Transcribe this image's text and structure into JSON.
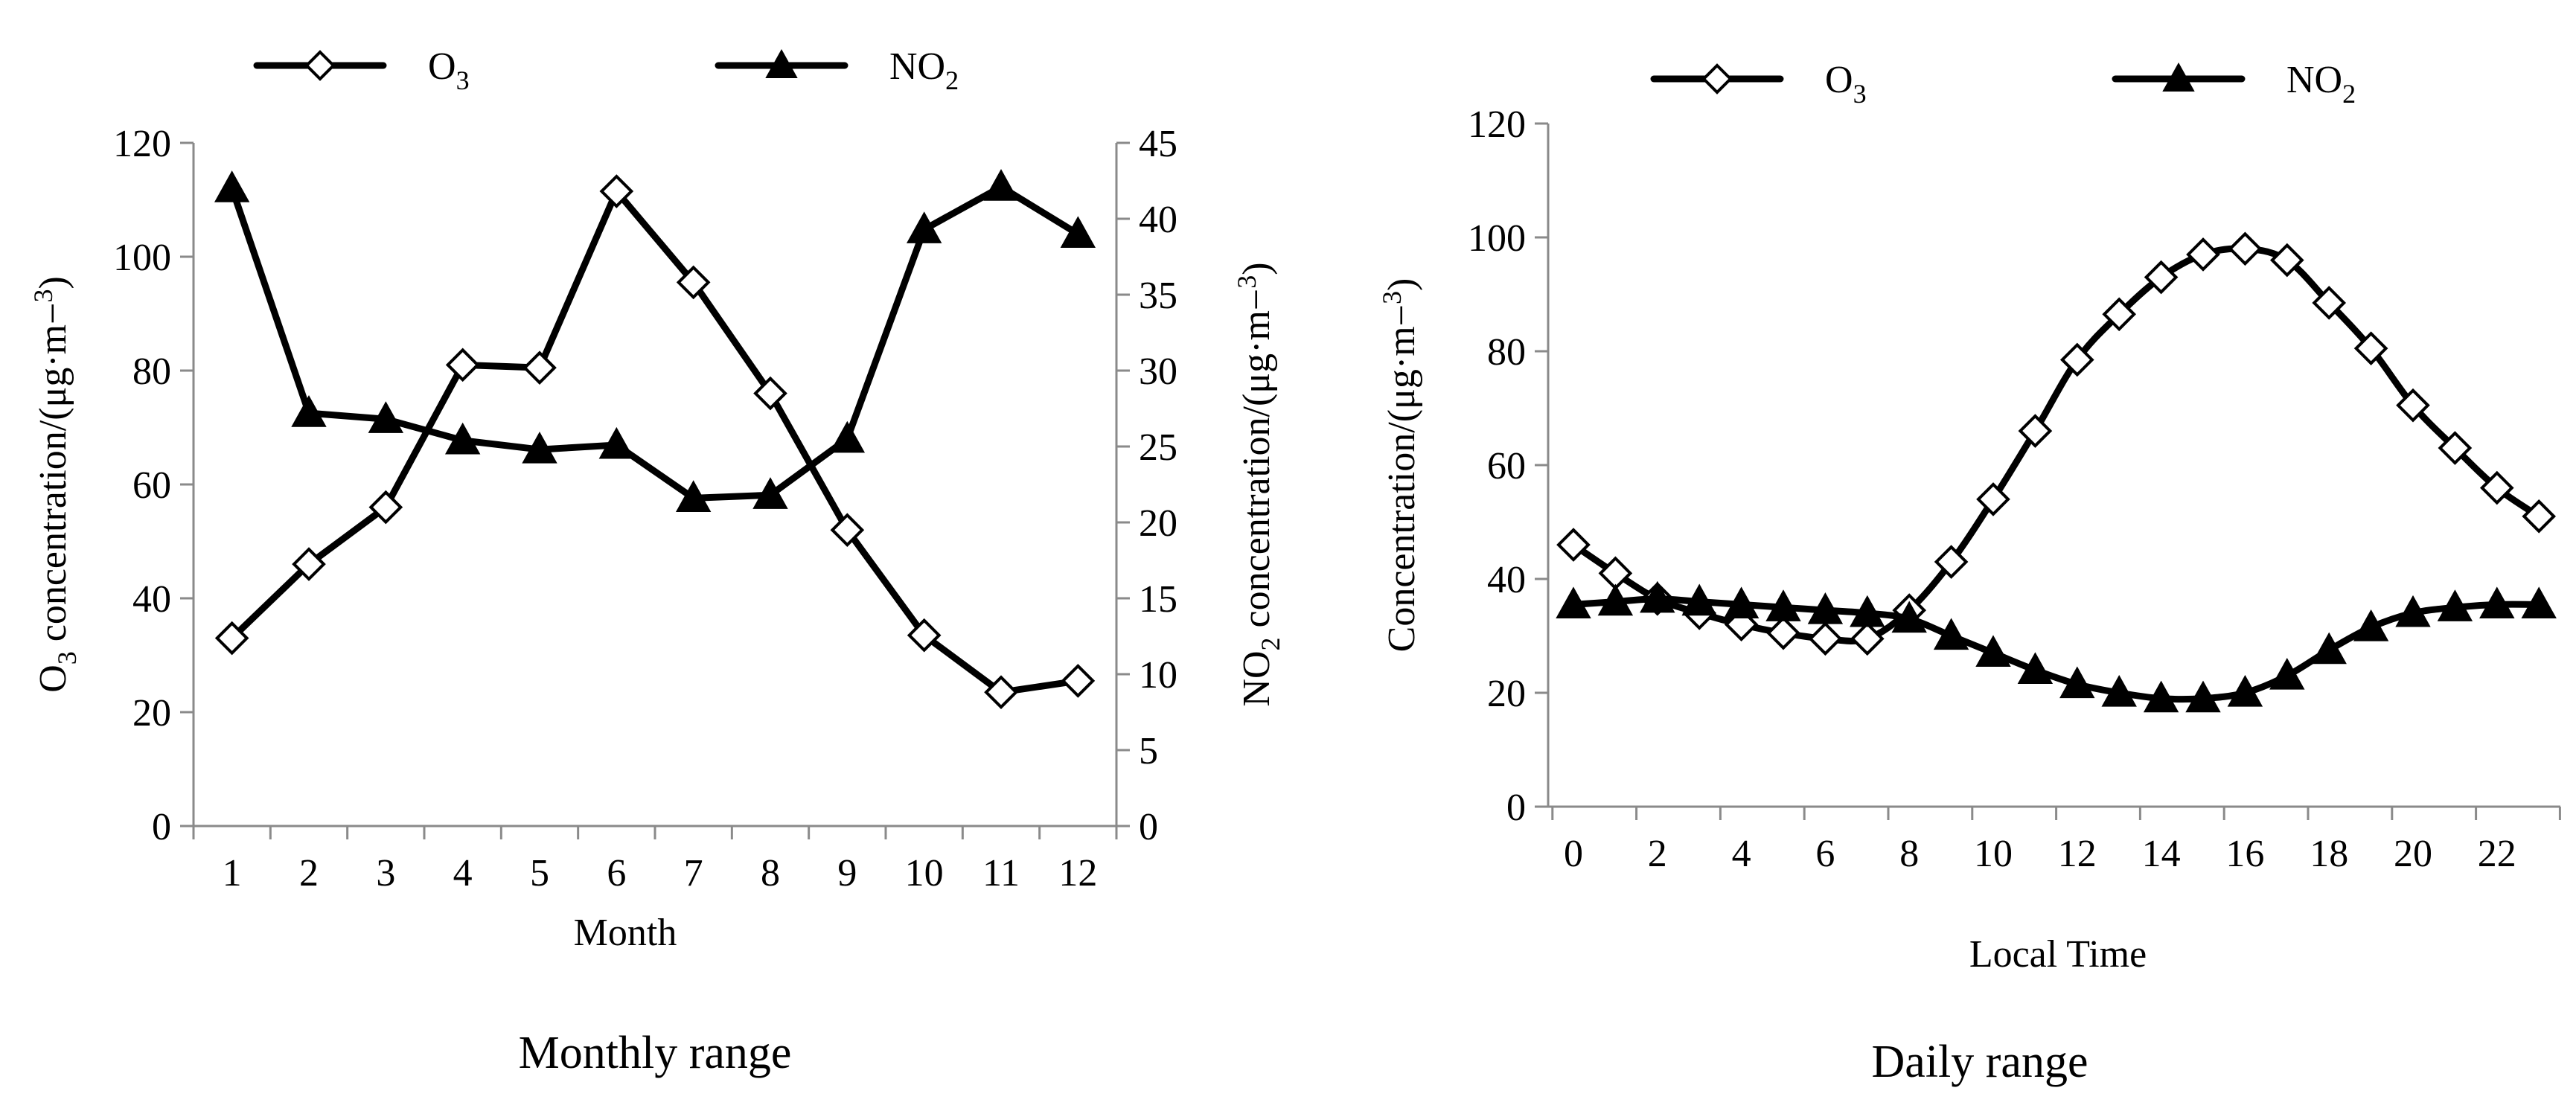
{
  "chart_data": [
    {
      "type": "line",
      "caption": "Monthly range",
      "xlabel": "Month",
      "ylabel_left": "O3 concentration/(μg·m−3)",
      "ylabel_right": "NO2 concentration/(μg·m−3)",
      "x": [
        1,
        2,
        3,
        4,
        5,
        6,
        7,
        8,
        9,
        10,
        11,
        12
      ],
      "xticks": [
        "1",
        "2",
        "3",
        "4",
        "5",
        "6",
        "7",
        "8",
        "9",
        "10",
        "11",
        "12"
      ],
      "ylim_left": [
        0,
        120
      ],
      "yticks_left": [
        "0",
        "20",
        "40",
        "60",
        "80",
        "100",
        "120"
      ],
      "ylim_right": [
        0,
        45
      ],
      "yticks_right": [
        "0",
        "5",
        "10",
        "15",
        "20",
        "25",
        "30",
        "35",
        "40",
        "45"
      ],
      "legend": [
        "O3",
        "NO2"
      ],
      "legend_position": "top",
      "series": [
        {
          "name": "O3",
          "axis": "left",
          "marker": "open-diamond",
          "values": [
            33,
            46,
            56,
            81,
            80.5,
            111.5,
            95.5,
            76,
            52,
            33.5,
            23.5,
            25.5
          ]
        },
        {
          "name": "NO2",
          "axis": "right",
          "marker": "filled-triangle",
          "values": [
            42,
            27.2,
            26.8,
            25.4,
            24.8,
            25.1,
            21.6,
            21.8,
            25.5,
            39.3,
            42.1,
            39
          ]
        }
      ]
    },
    {
      "type": "line",
      "caption": "Daily range",
      "xlabel": "Local Time",
      "ylabel": "Concentration/(μg·m−3)",
      "x": [
        0,
        1,
        2,
        3,
        4,
        5,
        6,
        7,
        8,
        9,
        10,
        11,
        12,
        13,
        14,
        15,
        16,
        17,
        18,
        19,
        20,
        21,
        22,
        23
      ],
      "xticks": [
        "0",
        "2",
        "4",
        "6",
        "8",
        "10",
        "12",
        "14",
        "16",
        "18",
        "20",
        "22"
      ],
      "ylim": [
        0,
        120
      ],
      "yticks": [
        "0",
        "20",
        "40",
        "60",
        "80",
        "100",
        "120"
      ],
      "legend": [
        "O3",
        "NO2"
      ],
      "legend_position": "top",
      "series": [
        {
          "name": "O3",
          "marker": "open-diamond",
          "values": [
            46,
            41,
            36.5,
            34,
            32,
            30.5,
            29.5,
            29.5,
            34.5,
            43,
            54,
            66,
            78.5,
            86.5,
            93,
            97,
            98,
            96,
            88.5,
            80.5,
            70.5,
            63,
            56,
            51
          ]
        },
        {
          "name": "NO2",
          "marker": "filled-triangle",
          "values": [
            35.5,
            36,
            36.5,
            36,
            35.5,
            35,
            34.5,
            34,
            33,
            30,
            27,
            24,
            21.5,
            20,
            19,
            19,
            20,
            23,
            27.5,
            31.5,
            34,
            35,
            35.5,
            35.5
          ]
        }
      ]
    }
  ]
}
